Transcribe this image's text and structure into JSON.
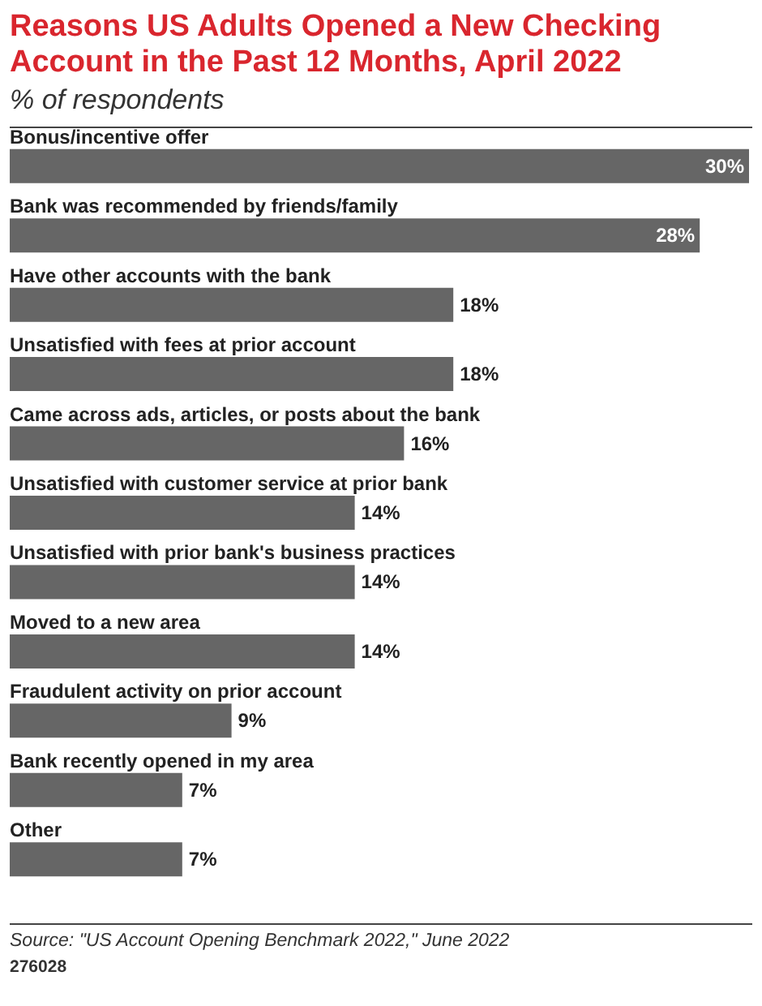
{
  "chart_data": {
    "type": "bar",
    "orientation": "horizontal",
    "title": "Reasons US Adults Opened a New Checking Account in the Past 12 Months, April 2022",
    "subtitle": "% of respondents",
    "categories": [
      "Bonus/incentive offer",
      "Bank was recommended by friends/family",
      "Have other accounts with the bank",
      "Unsatisfied with fees at prior account",
      "Came across ads, articles, or posts about the bank",
      "Unsatisfied with customer service at prior bank",
      "Unsatisfied with prior bank's business practices",
      "Moved to a new area",
      "Fraudulent activity on prior account",
      "Bank recently opened in my area",
      "Other"
    ],
    "values": [
      30,
      28,
      18,
      18,
      16,
      14,
      14,
      14,
      9,
      7,
      7
    ],
    "value_labels": [
      "30%",
      "28%",
      "18%",
      "18%",
      "16%",
      "14%",
      "14%",
      "14%",
      "9%",
      "7%",
      "7%"
    ],
    "color": "#666666",
    "annotations": [
      "Source: \"US Account Opening Benchmark 2022,\" June 2022",
      "276028"
    ]
  }
}
